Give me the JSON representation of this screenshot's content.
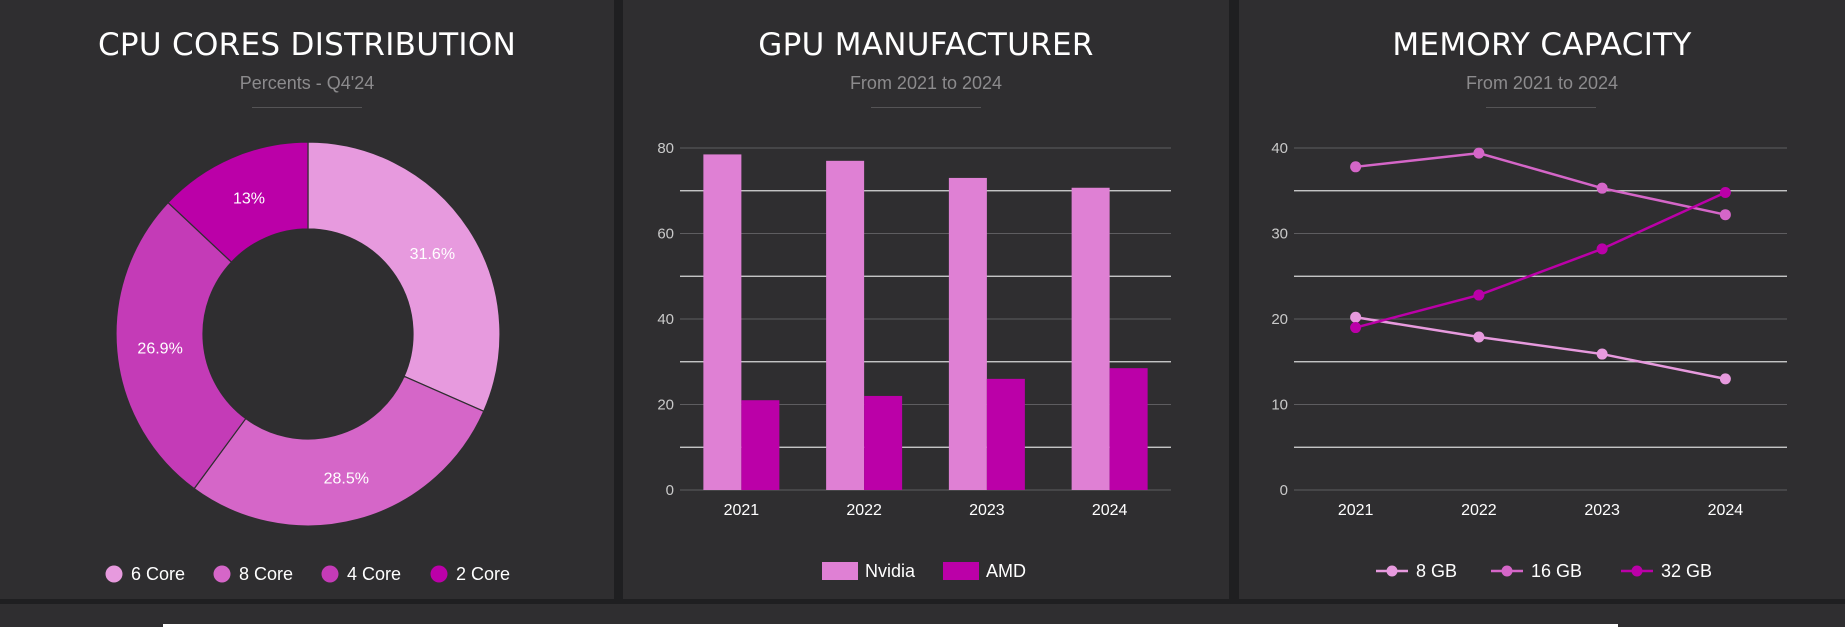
{
  "colors": {
    "c1": "#e79ade",
    "c2": "#d566c8",
    "c3": "#c43bb7",
    "c4": "#bb00a8",
    "nvidia": "#df80d4",
    "amd": "#bb00a8",
    "mem8": "#e79ade",
    "mem16": "#d566c8",
    "mem32": "#bb00a8"
  },
  "cpu": {
    "title": "CPU CORES DISTRIBUTION",
    "subtitle": "Percents - Q4'24"
  },
  "gpu": {
    "title": "GPU MANUFACTURER",
    "subtitle": "From 2021 to 2024"
  },
  "memory": {
    "title": "MEMORY CAPACITY",
    "subtitle": "From 2021 to 2024"
  },
  "chart_data": [
    {
      "type": "pie",
      "title": "CPU CORES DISTRIBUTION",
      "subtitle": "Percents - Q4'24",
      "donut": true,
      "categories": [
        "6 Core",
        "8 Core",
        "4 Core",
        "2 Core"
      ],
      "values": [
        31.6,
        28.5,
        26.9,
        13
      ],
      "labels": [
        "31.6%",
        "28.5%",
        "26.9%",
        "13%"
      ],
      "legend_position": "bottom"
    },
    {
      "type": "bar",
      "title": "GPU MANUFACTURER",
      "subtitle": "From 2021 to 2024",
      "categories": [
        "2021",
        "2022",
        "2023",
        "2024"
      ],
      "series": [
        {
          "name": "Nvidia",
          "values": [
            78.5,
            77,
            73,
            70.7
          ]
        },
        {
          "name": "AMD",
          "values": [
            21,
            22,
            26,
            28.5
          ]
        }
      ],
      "ylim": [
        0,
        80
      ],
      "yticks": [
        0,
        20,
        40,
        60,
        80
      ],
      "grid": true,
      "legend_position": "bottom"
    },
    {
      "type": "line",
      "title": "MEMORY CAPACITY",
      "subtitle": "From 2021 to 2024",
      "categories": [
        "2021",
        "2022",
        "2023",
        "2024"
      ],
      "series": [
        {
          "name": "8 GB",
          "values": [
            20.2,
            17.9,
            15.9,
            13
          ]
        },
        {
          "name": "16 GB",
          "values": [
            37.8,
            39.4,
            35.3,
            32.2
          ]
        },
        {
          "name": "32 GB",
          "values": [
            19,
            22.8,
            28.2,
            34.8
          ]
        }
      ],
      "ylim": [
        0,
        40
      ],
      "yticks": [
        0,
        10,
        20,
        30,
        40
      ],
      "grid": true,
      "legend_position": "bottom"
    }
  ]
}
